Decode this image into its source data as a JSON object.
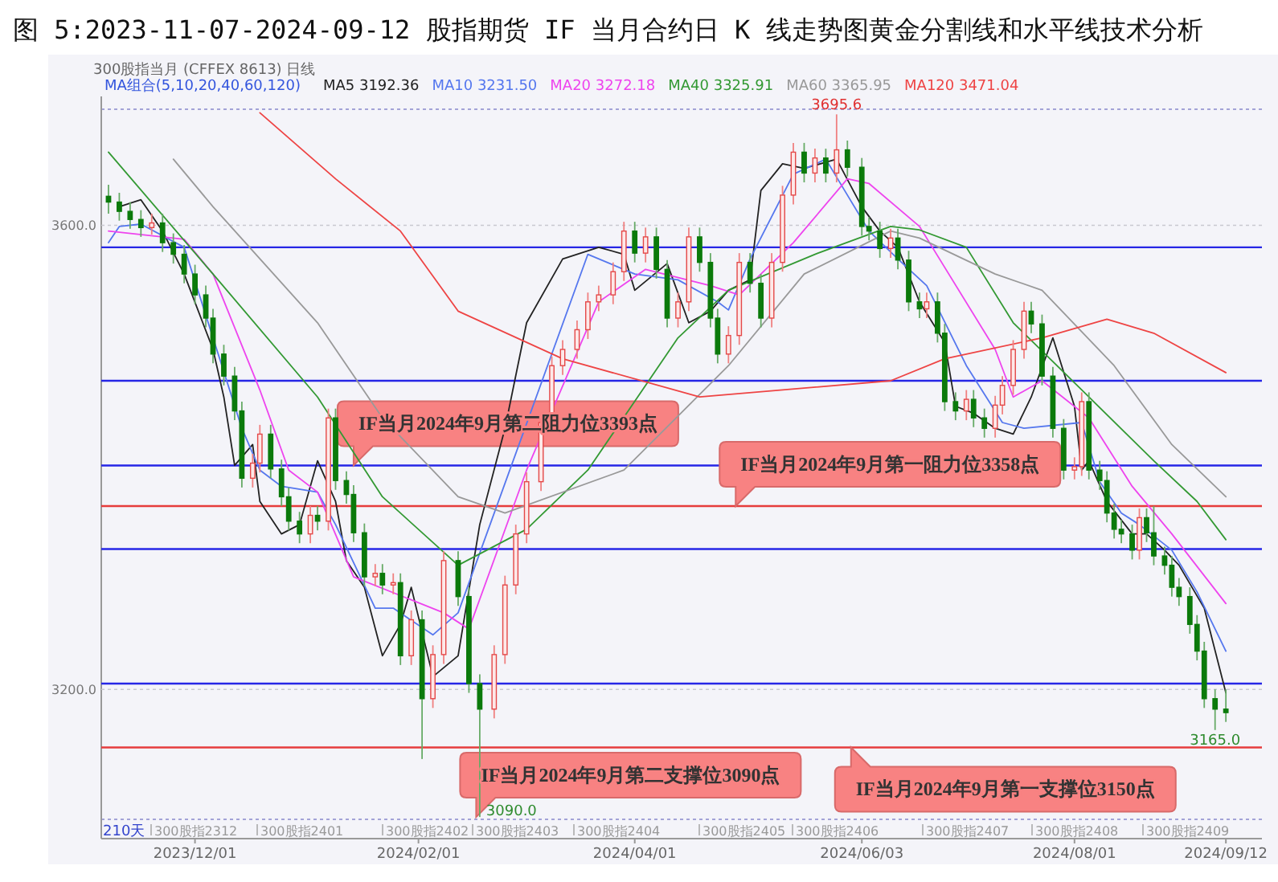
{
  "chart_data": {
    "type": "candlestick",
    "title": "图 5:2023-11-07-2024-09-12 股指期货 IF 当月合约日 K 线走势图黄金分割线和水平线技术分析",
    "subtitle": "300股指当月 (CFFEX 8613) 日线",
    "legend_title": "MA组合(5,10,20,40,60,120)",
    "legend": "top left",
    "grid": "y",
    "xlim": [
      "2023-11-05",
      "2024-09-22"
    ],
    "ylim": [
      3088,
      3700
    ],
    "yticks": [
      {
        "value": 3200,
        "label": "3200.0"
      },
      {
        "value": 3600,
        "label": "3600.0"
      }
    ],
    "xticks": [
      {
        "value": "2023-12-01",
        "label": "2023/12/01"
      },
      {
        "value": "2024-02-01",
        "label": "2024/02/01"
      },
      {
        "value": "2024-04-01",
        "label": "2024/04/01"
      },
      {
        "value": "2024-06-03",
        "label": "2024/06/03"
      },
      {
        "value": "2024-08-01",
        "label": "2024/08/01"
      },
      {
        "value": "2024-09-12",
        "label": "2024/09/12"
      }
    ],
    "x": [
      "2023-11-07",
      "2023-11-10",
      "2023-11-13",
      "2023-11-16",
      "2023-11-19",
      "2023-11-22",
      "2023-11-25",
      "2023-11-28",
      "2023-12-01",
      "2023-12-04",
      "2023-12-06",
      "2023-12-09",
      "2023-12-12",
      "2023-12-14",
      "2023-12-17",
      "2023-12-19",
      "2023-12-22",
      "2023-12-25",
      "2023-12-27",
      "2023-12-30",
      "2024-01-02",
      "2024-01-04",
      "2024-01-07",
      "2024-01-09",
      "2024-01-12",
      "2024-01-14",
      "2024-01-17",
      "2024-01-20",
      "2024-01-22",
      "2024-01-25",
      "2024-01-27",
      "2024-01-30",
      "2024-02-02",
      "2024-02-05",
      "2024-02-08",
      "2024-02-12",
      "2024-02-15",
      "2024-02-18",
      "2024-02-22",
      "2024-02-25",
      "2024-02-28",
      "2024-03-02",
      "2024-03-06",
      "2024-03-09",
      "2024-03-12",
      "2024-03-16",
      "2024-03-19",
      "2024-03-22",
      "2024-03-26",
      "2024-03-29",
      "2024-04-01",
      "2024-04-04",
      "2024-04-07",
      "2024-04-10",
      "2024-04-13",
      "2024-04-16",
      "2024-04-19",
      "2024-04-22",
      "2024-04-24",
      "2024-04-27",
      "2024-04-30",
      "2024-05-03",
      "2024-05-06",
      "2024-05-09",
      "2024-05-12",
      "2024-05-15",
      "2024-05-18",
      "2024-05-21",
      "2024-05-24",
      "2024-05-27",
      "2024-05-30",
      "2024-06-03",
      "2024-06-05",
      "2024-06-08",
      "2024-06-11",
      "2024-06-13",
      "2024-06-16",
      "2024-06-19",
      "2024-06-21",
      "2024-06-24",
      "2024-06-26",
      "2024-06-29",
      "2024-07-02",
      "2024-07-04",
      "2024-07-07",
      "2024-07-10",
      "2024-07-12",
      "2024-07-15",
      "2024-07-18",
      "2024-07-20",
      "2024-07-23",
      "2024-07-26",
      "2024-07-29",
      "2024-08-01",
      "2024-08-03",
      "2024-08-05",
      "2024-08-08",
      "2024-08-10",
      "2024-08-12",
      "2024-08-14",
      "2024-08-17",
      "2024-08-19",
      "2024-08-21",
      "2024-08-23",
      "2024-08-26",
      "2024-08-28",
      "2024-08-30",
      "2024-09-02",
      "2024-09-04",
      "2024-09-06",
      "2024-09-09",
      "2024-09-12"
    ],
    "ohlc": [
      [
        3625,
        3635,
        3610,
        3620
      ],
      [
        3620,
        3628,
        3604,
        3612
      ],
      [
        3612,
        3620,
        3597,
        3605
      ],
      [
        3605,
        3613,
        3590,
        3598
      ],
      [
        3598,
        3610,
        3592,
        3602
      ],
      [
        3602,
        3610,
        3577,
        3585
      ],
      [
        3585,
        3593,
        3567,
        3575
      ],
      [
        3575,
        3583,
        3550,
        3558
      ],
      [
        3558,
        3566,
        3532,
        3540
      ],
      [
        3540,
        3548,
        3512,
        3520
      ],
      [
        3520,
        3528,
        3481,
        3489
      ],
      [
        3489,
        3497,
        3462,
        3470
      ],
      [
        3470,
        3478,
        3432,
        3440
      ],
      [
        3440,
        3448,
        3374,
        3382
      ],
      [
        3382,
        3403,
        3374,
        3395
      ],
      [
        3395,
        3428,
        3387,
        3420
      ],
      [
        3420,
        3428,
        3382,
        3390
      ],
      [
        3390,
        3398,
        3358,
        3366
      ],
      [
        3366,
        3374,
        3337,
        3345
      ],
      [
        3345,
        3353,
        3326,
        3334
      ],
      [
        3334,
        3358,
        3326,
        3350
      ],
      [
        3350,
        3358,
        3337,
        3345
      ],
      [
        3345,
        3442,
        3337,
        3434
      ],
      [
        3434,
        3442,
        3372,
        3380
      ],
      [
        3380,
        3388,
        3360,
        3368
      ],
      [
        3368,
        3376,
        3327,
        3335
      ],
      [
        3335,
        3343,
        3289,
        3297
      ],
      [
        3297,
        3308,
        3289,
        3300
      ],
      [
        3300,
        3308,
        3282,
        3290
      ],
      [
        3290,
        3300,
        3282,
        3292
      ],
      [
        3292,
        3300,
        3221,
        3229
      ],
      [
        3229,
        3268,
        3221,
        3260
      ],
      [
        3260,
        3268,
        3140,
        3192
      ],
      [
        3192,
        3238,
        3184,
        3230
      ],
      [
        3230,
        3319,
        3222,
        3311
      ],
      [
        3311,
        3319,
        3272,
        3280
      ],
      [
        3280,
        3288,
        3197,
        3205
      ],
      [
        3205,
        3213,
        3090,
        3183
      ],
      [
        3183,
        3238,
        3175,
        3230
      ],
      [
        3230,
        3298,
        3222,
        3290
      ],
      [
        3290,
        3342,
        3282,
        3334
      ],
      [
        3334,
        3387,
        3326,
        3379
      ],
      [
        3379,
        3438,
        3371,
        3430
      ],
      [
        3430,
        3487,
        3422,
        3479
      ],
      [
        3479,
        3501,
        3471,
        3493
      ],
      [
        3493,
        3518,
        3485,
        3510
      ],
      [
        3510,
        3542,
        3502,
        3534
      ],
      [
        3534,
        3548,
        3526,
        3540
      ],
      [
        3540,
        3568,
        3532,
        3560
      ],
      [
        3560,
        3603,
        3552,
        3595
      ],
      [
        3595,
        3603,
        3568,
        3576
      ],
      [
        3576,
        3598,
        3568,
        3590
      ],
      [
        3590,
        3598,
        3554,
        3562
      ],
      [
        3562,
        3570,
        3512,
        3520
      ],
      [
        3520,
        3542,
        3512,
        3534
      ],
      [
        3534,
        3598,
        3526,
        3590
      ],
      [
        3590,
        3598,
        3560,
        3568
      ],
      [
        3568,
        3576,
        3512,
        3520
      ],
      [
        3520,
        3528,
        3481,
        3489
      ],
      [
        3489,
        3513,
        3481,
        3505
      ],
      [
        3505,
        3576,
        3497,
        3568
      ],
      [
        3568,
        3576,
        3542,
        3550
      ],
      [
        3550,
        3558,
        3512,
        3520
      ],
      [
        3520,
        3576,
        3512,
        3568
      ],
      [
        3568,
        3634,
        3560,
        3626
      ],
      [
        3626,
        3671,
        3618,
        3663
      ],
      [
        3663,
        3671,
        3637,
        3645
      ],
      [
        3645,
        3666,
        3637,
        3658
      ],
      [
        3658,
        3666,
        3637,
        3645
      ],
      [
        3645,
        3695.6,
        3637,
        3665
      ],
      [
        3665,
        3673,
        3642,
        3650
      ],
      [
        3650,
        3658,
        3591,
        3599
      ],
      [
        3599,
        3607,
        3587,
        3595
      ],
      [
        3595,
        3603,
        3572,
        3580
      ],
      [
        3580,
        3597,
        3572,
        3589
      ],
      [
        3589,
        3597,
        3562,
        3570
      ],
      [
        3570,
        3578,
        3526,
        3534
      ],
      [
        3534,
        3542,
        3520,
        3528
      ],
      [
        3528,
        3542,
        3520,
        3534
      ],
      [
        3534,
        3542,
        3499,
        3507
      ],
      [
        3507,
        3515,
        3440,
        3448
      ],
      [
        3448,
        3456,
        3432,
        3440
      ],
      [
        3440,
        3458,
        3432,
        3450
      ],
      [
        3450,
        3458,
        3426,
        3434
      ],
      [
        3434,
        3442,
        3417,
        3425
      ],
      [
        3425,
        3453,
        3417,
        3445
      ],
      [
        3445,
        3470,
        3437,
        3462
      ],
      [
        3462,
        3501,
        3454,
        3493
      ],
      [
        3493,
        3534,
        3485,
        3526
      ],
      [
        3526,
        3534,
        3507,
        3515
      ],
      [
        3515,
        3523,
        3462,
        3470
      ],
      [
        3470,
        3478,
        3417,
        3425
      ],
      [
        3425,
        3433,
        3381,
        3389
      ],
      [
        3389,
        3400,
        3381,
        3392
      ],
      [
        3392,
        3456,
        3384,
        3448
      ],
      [
        3448,
        3456,
        3381,
        3389
      ],
      [
        3389,
        3397,
        3372,
        3380
      ],
      [
        3380,
        3388,
        3344,
        3352
      ],
      [
        3352,
        3360,
        3330,
        3338
      ],
      [
        3338,
        3346,
        3326,
        3334
      ],
      [
        3334,
        3342,
        3312,
        3320
      ],
      [
        3320,
        3356,
        3312,
        3348
      ],
      [
        3348,
        3356,
        3327,
        3335
      ],
      [
        3335,
        3358,
        3307,
        3315
      ],
      [
        3315,
        3323,
        3299,
        3307
      ],
      [
        3307,
        3315,
        3280,
        3288
      ],
      [
        3288,
        3296,
        3272,
        3280
      ],
      [
        3280,
        3288,
        3248,
        3256
      ],
      [
        3256,
        3264,
        3225,
        3233
      ],
      [
        3233,
        3241,
        3184,
        3192
      ],
      [
        3192,
        3200,
        3165,
        3183
      ],
      [
        3183,
        3200,
        3172,
        3180
      ]
    ],
    "series": [
      {
        "type": "line",
        "name": "MA5 3192.36",
        "color": "#222222",
        "x": [
          "2023-11-10",
          "2023-11-16",
          "2023-11-22",
          "2023-11-28",
          "2023-12-06",
          "2023-12-09",
          "2023-12-12",
          "2023-12-17",
          "2023-12-19",
          "2023-12-25",
          "2023-12-30",
          "2024-01-04",
          "2024-01-09",
          "2024-01-12",
          "2024-01-17",
          "2024-01-22",
          "2024-01-27",
          "2024-01-30",
          "2024-02-05",
          "2024-02-12",
          "2024-02-18",
          "2024-02-25",
          "2024-03-02",
          "2024-03-12",
          "2024-03-22",
          "2024-03-29",
          "2024-04-01",
          "2024-04-10",
          "2024-04-16",
          "2024-04-22",
          "2024-04-27",
          "2024-05-03",
          "2024-05-06",
          "2024-05-12",
          "2024-05-18",
          "2024-05-27",
          "2024-06-03",
          "2024-06-08",
          "2024-06-13",
          "2024-06-19",
          "2024-06-26",
          "2024-06-29",
          "2024-07-04",
          "2024-07-10",
          "2024-07-15",
          "2024-07-20",
          "2024-07-26",
          "2024-08-01",
          "2024-08-03",
          "2024-08-05",
          "2024-08-10",
          "2024-08-17",
          "2024-08-21",
          "2024-08-26",
          "2024-08-30",
          "2024-09-06",
          "2024-09-12"
        ],
        "values": [
          3616,
          3622,
          3595,
          3558,
          3493,
          3452,
          3393,
          3411,
          3362,
          3334,
          3342,
          3397,
          3362,
          3311,
          3288,
          3229,
          3256,
          3288,
          3211,
          3229,
          3342,
          3425,
          3516,
          3571,
          3581,
          3575,
          3544,
          3567,
          3516,
          3526,
          3544,
          3553,
          3630,
          3653,
          3649,
          3657,
          3616,
          3595,
          3581,
          3534,
          3499,
          3444,
          3438,
          3425,
          3420,
          3452,
          3503,
          3444,
          3389,
          3397,
          3362,
          3334,
          3334,
          3320,
          3307,
          3270,
          3197
        ]
      },
      {
        "type": "line",
        "name": "MA10 3231.50",
        "color": "#5577ee",
        "x": [
          "2023-11-07",
          "2023-11-10",
          "2023-11-16",
          "2023-11-28",
          "2023-12-06",
          "2023-12-14",
          "2023-12-19",
          "2023-12-25",
          "2024-01-04",
          "2024-01-09",
          "2024-01-20",
          "2024-01-25",
          "2024-02-05",
          "2024-02-12",
          "2024-03-19",
          "2024-04-01",
          "2024-04-13",
          "2024-04-24",
          "2024-04-27",
          "2024-05-03",
          "2024-05-15",
          "2024-05-24",
          "2024-05-30",
          "2024-06-05",
          "2024-06-13",
          "2024-06-21",
          "2024-07-02",
          "2024-07-12",
          "2024-07-18",
          "2024-08-03",
          "2024-08-08",
          "2024-08-14",
          "2024-08-19",
          "2024-08-28",
          "2024-09-04",
          "2024-09-12"
        ],
        "values": [
          3585,
          3599,
          3601,
          3581,
          3503,
          3425,
          3389,
          3375,
          3370,
          3342,
          3270,
          3270,
          3247,
          3266,
          3575,
          3558,
          3553,
          3534,
          3527,
          3571,
          3644,
          3657,
          3626,
          3595,
          3571,
          3548,
          3479,
          3430,
          3425,
          3430,
          3379,
          3352,
          3342,
          3320,
          3284,
          3233
        ]
      },
      {
        "type": "line",
        "name": "MA20 3272.18",
        "color": "#ee44ee",
        "x": [
          "2023-11-07",
          "2023-11-28",
          "2023-12-06",
          "2023-12-19",
          "2023-12-27",
          "2024-01-04",
          "2024-01-14",
          "2024-02-08",
          "2024-02-15",
          "2024-03-02",
          "2024-03-22",
          "2024-04-04",
          "2024-04-22",
          "2024-04-30",
          "2024-05-15",
          "2024-05-30",
          "2024-06-05",
          "2024-06-19",
          "2024-07-10",
          "2024-07-15",
          "2024-07-23",
          "2024-08-05",
          "2024-08-17",
          "2024-08-28",
          "2024-09-12"
        ],
        "values": [
          3595,
          3588,
          3558,
          3458,
          3389,
          3370,
          3297,
          3266,
          3252,
          3389,
          3534,
          3562,
          3548,
          3540,
          3585,
          3640,
          3636,
          3599,
          3493,
          3452,
          3466,
          3434,
          3375,
          3334,
          3274
        ]
      },
      {
        "type": "line",
        "name": "MA40 3325.91",
        "color": "#339933",
        "x": [
          "2023-11-07",
          "2023-12-06",
          "2024-01-04",
          "2024-01-22",
          "2024-02-12",
          "2024-03-02",
          "2024-03-19",
          "2024-04-13",
          "2024-04-27",
          "2024-05-21",
          "2024-06-11",
          "2024-06-19",
          "2024-07-02",
          "2024-07-15",
          "2024-08-05",
          "2024-08-23",
          "2024-09-04",
          "2024-09-12"
        ],
        "values": [
          3663,
          3558,
          3452,
          3366,
          3307,
          3338,
          3389,
          3503,
          3544,
          3575,
          3599,
          3596,
          3581,
          3516,
          3452,
          3397,
          3362,
          3329
        ]
      },
      {
        "type": "line",
        "name": "MA60 3365.95",
        "color": "#999999",
        "x": [
          "2023-11-25",
          "2023-12-06",
          "2024-01-04",
          "2024-01-22",
          "2024-02-12",
          "2024-02-25",
          "2024-03-29",
          "2024-04-27",
          "2024-05-18",
          "2024-06-11",
          "2024-06-19",
          "2024-07-10",
          "2024-07-23",
          "2024-08-12",
          "2024-08-28",
          "2024-09-12"
        ],
        "values": [
          3657,
          3616,
          3516,
          3434,
          3366,
          3352,
          3389,
          3479,
          3558,
          3595,
          3589,
          3558,
          3544,
          3479,
          3411,
          3366
        ]
      },
      {
        "type": "line",
        "name": "MA120 3471.04",
        "color": "#ee4444",
        "x": [
          "2023-12-19",
          "2024-01-09",
          "2024-01-27",
          "2024-02-12",
          "2024-03-12",
          "2024-04-19",
          "2024-06-11",
          "2024-06-26",
          "2024-07-23",
          "2024-08-10",
          "2024-08-23",
          "2024-09-12"
        ],
        "values": [
          3697,
          3640,
          3595,
          3526,
          3485,
          3452,
          3466,
          3485,
          3503,
          3519,
          3507,
          3473
        ]
      }
    ],
    "ref_lines": [
      {
        "axis": "y",
        "value": 3581,
        "color": "#2626e6"
      },
      {
        "axis": "y",
        "value": 3466,
        "color": "#2626e6"
      },
      {
        "axis": "y",
        "value": 3393,
        "color": "#2626e6"
      },
      {
        "axis": "y",
        "value": 3358,
        "color": "#e63c3c"
      },
      {
        "axis": "y",
        "value": 3321,
        "color": "#2626e6"
      },
      {
        "axis": "y",
        "value": 3205,
        "color": "#2626e6"
      },
      {
        "axis": "y",
        "value": 3150,
        "color": "#e63c3c"
      }
    ],
    "annotations": [
      {
        "text": "IF当月2024年9月第二阻力位3393点",
        "x": "2024-01-14",
        "y": 3393
      },
      {
        "text": "IF当月2024年9月第一阻力位3358点",
        "x": "2024-04-29",
        "y": 3358
      },
      {
        "text": "IF当月2024年9月第二支撑位3090点",
        "x": "2024-02-17",
        "y": 3090
      },
      {
        "text": "IF当月2024年9月第一支撑位3150点",
        "x": "2024-05-31",
        "y": 3150
      },
      {
        "text": "3695.6",
        "x": "2024-05-27",
        "y": 3695.6
      },
      {
        "text": "3165.0",
        "x": "2024-09-09",
        "y": 3165
      },
      {
        "text": "3090.0",
        "x": "2024-02-18",
        "y": 3090
      },
      "210天",
      "300股指2312",
      "300股指2401",
      "300股指2402",
      "300股指2403",
      "300股指2404",
      "300股指2405",
      "300股指2406",
      "300股指2407",
      "300股指2408",
      "300股指2409"
    ]
  }
}
